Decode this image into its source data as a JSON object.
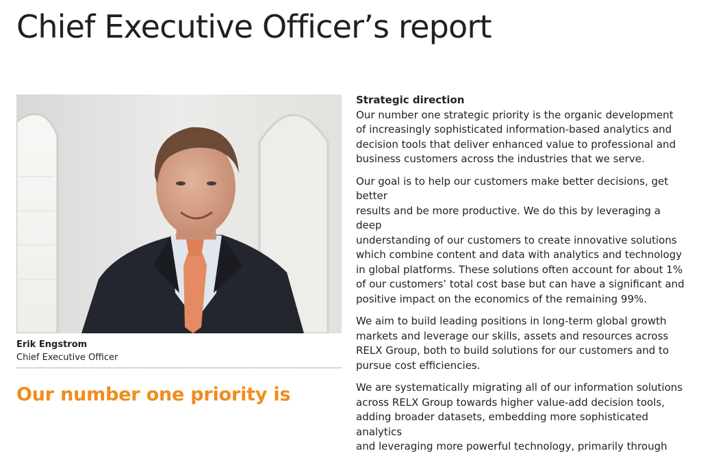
{
  "page": {
    "title": "Chief Executive Officer’s report"
  },
  "photo": {
    "alt": "Portrait photo",
    "caption_name": "Erik Engstrom",
    "caption_role": "Chief Executive Officer"
  },
  "pull_quote": "Our number one priority is",
  "article": {
    "heading": "Strategic direction",
    "paragraphs": [
      "Our number one strategic priority is the organic development\nof increasingly sophisticated information-based analytics and\ndecision tools that deliver enhanced value to professional and\nbusiness customers across the industries that we serve.",
      "Our goal is to help our customers make better decisions, get better\nresults and be more productive. We do this by leveraging a deep\nunderstanding of our customers to create innovative solutions\nwhich combine content and data with analytics and technology\nin global platforms. These solutions often account for about 1%\nof our customers’ total cost base but can have a significant and\npositive impact on the economics of the remaining 99%.",
      "We aim to build leading positions in long-term global growth\nmarkets and leverage our skills, assets and resources across\nRELX Group, both to build solutions for our customers and to\npursue cost efficiencies.",
      "We are systematically migrating all of our information solutions\nacross RELX Group towards higher value-add decision tools,\nadding broader datasets, embedding more sophisticated analytics\nand leveraging more powerful technology, primarily through"
    ]
  },
  "colors": {
    "accent_orange": "#f08c1e",
    "text": "#231f20"
  }
}
